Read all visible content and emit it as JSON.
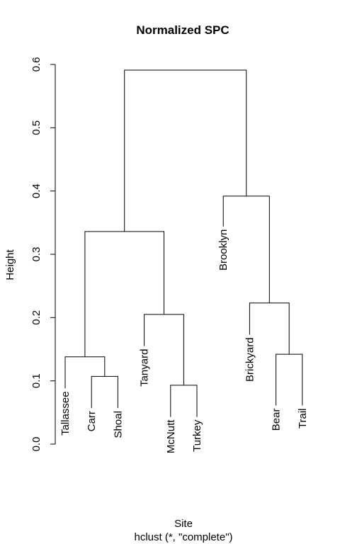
{
  "chart_data": {
    "type": "dendrogram",
    "title": "Normalized SPC",
    "xlabel": "Site",
    "sublabel": "hclust (*, \"complete\")",
    "ylabel": "Height",
    "ylim": [
      0.0,
      0.6
    ],
    "yticks": [
      0.0,
      0.1,
      0.2,
      0.3,
      0.4,
      0.5,
      0.6
    ],
    "ytick_labels": [
      "0.0",
      "0.1",
      "0.2",
      "0.3",
      "0.4",
      "0.5",
      "0.6"
    ],
    "leaves": [
      "Tallassee",
      "Carr",
      "Shoal",
      "Tanyard",
      "McNutt",
      "Turkey",
      "Brooklyn",
      "Brickyard",
      "Bear",
      "Trail"
    ],
    "leaf_heights": [
      0.088,
      0.057,
      0.057,
      0.155,
      0.043,
      0.043,
      0.344,
      0.173,
      0.061,
      0.061
    ],
    "merges": [
      {
        "left": "Carr",
        "right": "Shoal",
        "height": 0.107
      },
      {
        "left": "Tallassee",
        "right": "Carr+Shoal",
        "height": 0.138
      },
      {
        "left": "McNutt",
        "right": "Turkey",
        "height": 0.093
      },
      {
        "left": "Tanyard",
        "right": "McNutt+Turkey",
        "height": 0.205
      },
      {
        "left": "Tallassee+Carr+Shoal",
        "right": "Tanyard+McNutt+Turkey",
        "height": 0.336
      },
      {
        "left": "Bear",
        "right": "Trail",
        "height": 0.142
      },
      {
        "left": "Brickyard",
        "right": "Bear+Trail",
        "height": 0.223
      },
      {
        "left": "Brooklyn",
        "right": "Brickyard+Bear+Trail",
        "height": 0.392
      },
      {
        "left": "left-cluster",
        "right": "right-cluster",
        "height": 0.591
      }
    ]
  }
}
